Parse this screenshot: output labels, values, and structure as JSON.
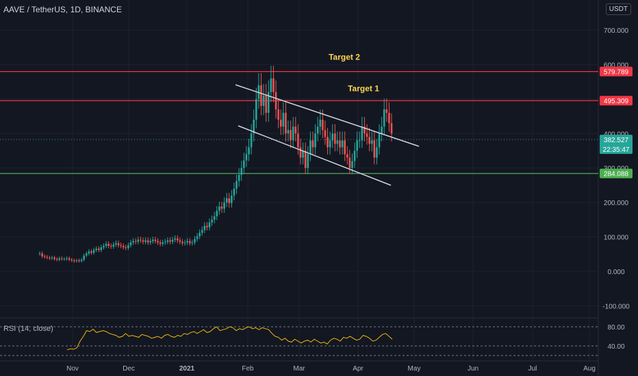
{
  "header": {
    "symbol_title": "AAVE / TetherUS, 1D, BINANCE",
    "currency": "USDT"
  },
  "rsi": {
    "label": "RSI (14, close)",
    "levels": [
      "80.00",
      "40.00"
    ],
    "color": "#f0b90b",
    "values": [
      32,
      34,
      33,
      36,
      50,
      60,
      72,
      70,
      75,
      68,
      70,
      72,
      70,
      66,
      64,
      62,
      58,
      60,
      66,
      60,
      62,
      60,
      58,
      64,
      62,
      60,
      56,
      58,
      60,
      56,
      62,
      64,
      60,
      58,
      62,
      60,
      66,
      64,
      68,
      70,
      66,
      70,
      74,
      68,
      70,
      76,
      80,
      72,
      74,
      76,
      80,
      78,
      72,
      76,
      74,
      78,
      80,
      76,
      78,
      74,
      78,
      76,
      74,
      66,
      60,
      58,
      52,
      56,
      50,
      48,
      54,
      50,
      46,
      50,
      52,
      48,
      54,
      50,
      46,
      48,
      44,
      52,
      56,
      54,
      50,
      58,
      56,
      60,
      56,
      52,
      54,
      62,
      60,
      56,
      50,
      52,
      58,
      64,
      66,
      60,
      54
    ]
  },
  "chart_data": {
    "type": "candlestick",
    "currency": "USDT",
    "y_ticks": [
      "700.000",
      "600.000",
      "500.000",
      "400.000",
      "300.000",
      "200.000",
      "100.000",
      "0.000",
      "-100.000"
    ],
    "x_ticks": [
      "Nov",
      "Dec",
      "2021",
      "Feb",
      "Mar",
      "Apr",
      "May",
      "Jun",
      "Jul",
      "Aug"
    ],
    "close": [
      52,
      44,
      42,
      40,
      38,
      40,
      36,
      34,
      38,
      36,
      36,
      38,
      34,
      32,
      30,
      32,
      30,
      34,
      46,
      52,
      58,
      54,
      62,
      66,
      62,
      70,
      74,
      80,
      74,
      72,
      78,
      82,
      76,
      74,
      70,
      68,
      76,
      84,
      88,
      86,
      92,
      90,
      86,
      90,
      84,
      88,
      92,
      88,
      84,
      80,
      84,
      86,
      90,
      86,
      92,
      96,
      90,
      86,
      82,
      84,
      88,
      82,
      84,
      94,
      102,
      112,
      120,
      132,
      128,
      142,
      150,
      160,
      176,
      188,
      182,
      200,
      212,
      198,
      220,
      240,
      262,
      280,
      300,
      322,
      340,
      360,
      400,
      440,
      500,
      540,
      480,
      510,
      460,
      520,
      560,
      520,
      470,
      440,
      420,
      460,
      400,
      410,
      380,
      420,
      400,
      360,
      330,
      350,
      300,
      340,
      380,
      360,
      400,
      420,
      440,
      410,
      390,
      360,
      380,
      400,
      370,
      380,
      360,
      380,
      340,
      330,
      300,
      320,
      350,
      380,
      380,
      420,
      400,
      390,
      370,
      380,
      330,
      360,
      400,
      420,
      470,
      460,
      430,
      400
    ],
    "levels": [
      {
        "label": "579.789",
        "value": 579.789,
        "color": "#f23645"
      },
      {
        "label": "495.309",
        "value": 495.309,
        "color": "#f23645"
      },
      {
        "label": "284.088",
        "value": 284.088,
        "color": "#4caf50"
      }
    ],
    "current_price": {
      "label": "382.527",
      "value": 382.527,
      "countdown": "22:35:47",
      "color": "#26a69a"
    },
    "annotations": [
      {
        "text": "Target 2",
        "value": 622,
        "color": "#ffd54f"
      },
      {
        "text": "Target 1",
        "value": 530,
        "color": "#ffd54f"
      }
    ],
    "colors": {
      "up": "#26a69a",
      "down": "#ef5350",
      "channel": "#d1d4dc"
    }
  }
}
